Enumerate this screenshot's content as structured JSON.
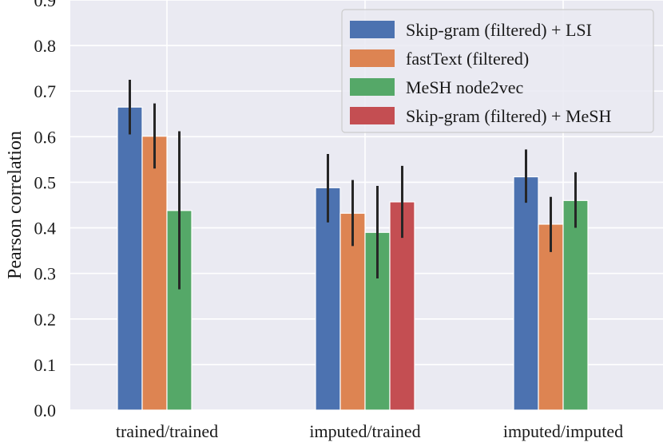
{
  "chart_data": {
    "type": "bar",
    "title": "",
    "xlabel": "",
    "ylabel": "Pearson correlation",
    "ylim": [
      0.0,
      0.9
    ],
    "yticks": [
      "0.0",
      "0.1",
      "0.2",
      "0.3",
      "0.4",
      "0.5",
      "0.6",
      "0.7",
      "0.8",
      "0.9"
    ],
    "grid": true,
    "legend_position": "top-right",
    "categories": [
      "trained/trained",
      "imputed/trained",
      "imputed/imputed"
    ],
    "series": [
      {
        "name": "Skip-gram (filtered) + LSI",
        "color": "#4c72b0",
        "values": [
          0.665,
          0.488,
          0.512
        ],
        "err_low": [
          0.605,
          0.412,
          0.455
        ],
        "err_high": [
          0.725,
          0.562,
          0.572
        ]
      },
      {
        "name": "fastText (filtered)",
        "color": "#dd8452",
        "values": [
          0.601,
          0.432,
          0.408
        ],
        "err_low": [
          0.53,
          0.36,
          0.347
        ],
        "err_high": [
          0.673,
          0.505,
          0.468
        ]
      },
      {
        "name": "MeSH node2vec",
        "color": "#55a868",
        "values": [
          0.438,
          0.39,
          0.46
        ],
        "err_low": [
          0.265,
          0.289,
          0.4
        ],
        "err_high": [
          0.612,
          0.492,
          0.522
        ]
      },
      {
        "name": "Skip-gram (filtered) + MeSH",
        "color": "#c44e52",
        "values": [
          null,
          0.457,
          null
        ],
        "err_low": [
          null,
          0.378,
          null
        ],
        "err_high": [
          null,
          0.536,
          null
        ]
      }
    ]
  }
}
